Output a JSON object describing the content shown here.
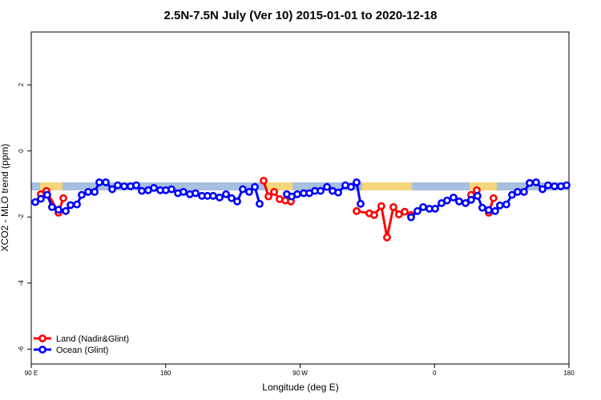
{
  "chart_data": {
    "type": "line",
    "title": "2.5N-7.5N July (Ver 10)   2015-01-01 to 2020-12-18",
    "x_label": "Longitude (deg E)",
    "y_label": "XCO2 - MLO trend (ppm)",
    "xlim": [
      90,
      450
    ],
    "ylim": [
      -6.45,
      3.6
    ],
    "xticks": [
      {
        "value": 90,
        "label": "90 E"
      },
      180,
      {
        "value": 270,
        "label": "90 W"
      },
      {
        "value": 360,
        "label": "0"
      },
      {
        "value": 450,
        "label": "180"
      }
    ],
    "yticks": [
      -6,
      -4,
      -2,
      0,
      2
    ],
    "legend": "bottom-left",
    "series": [
      {
        "name": "Land (Nadir&Glint)",
        "color": "#ff0000",
        "x": [
          96.4,
          100.2,
          108.2,
          111.5,
          null,
          245.6,
          248.8,
          252.6,
          256.3,
          260.1,
          263.8,
          null,
          307.8,
          316.4,
          319.6,
          324.4,
          328.2,
          332.5,
          336.2,
          340.0,
          344.3,
          null,
          384.5,
          388.3,
          null,
          396.3,
          399.5
        ],
        "values": [
          -1.31,
          -1.21,
          -1.87,
          -1.43,
          null,
          -0.9,
          -1.38,
          -1.24,
          -1.46,
          -1.5,
          -1.53,
          null,
          -1.82,
          -1.89,
          -1.94,
          -1.67,
          -2.62,
          -1.7,
          -1.92,
          -1.84,
          -1.94,
          null,
          -1.33,
          -1.19,
          null,
          -1.87,
          -1.43
        ]
      },
      {
        "name": "Ocean (Glint)",
        "color": "#0000ff",
        "x": [
          92.7,
          96.4,
          100.7,
          103.9,
          108.2,
          113.1,
          116.3,
          120.6,
          123.8,
          128.1,
          132.4,
          135.6,
          139.9,
          144.2,
          147.9,
          152.2,
          156.5,
          160.3,
          164.0,
          168.3,
          172.1,
          176.4,
          180.1,
          183.9,
          188.2,
          191.9,
          196.2,
          200.0,
          204.3,
          208.0,
          211.8,
          216.1,
          220.4,
          224.1,
          227.9,
          231.6,
          235.9,
          239.7,
          242.9,
          null,
          261.1,
          264.4,
          268.1,
          272.4,
          276.2,
          279.9,
          283.7,
          288.0,
          291.7,
          295.5,
          300.3,
          304.1,
          307.8,
          310.5,
          null,
          344.3,
          348.6,
          352.4,
          356.6,
          360.4,
          364.7,
          368.4,
          372.7,
          376.5,
          380.8,
          384.5,
          388.8,
          392.0,
          396.3,
          400.6,
          403.8,
          408.1,
          411.9,
          415.6,
          419.9,
          423.7,
          428.0,
          432.3,
          436.0,
          440.3,
          444.6,
          448.4
        ],
        "values": [
          -1.55,
          -1.45,
          -1.33,
          -1.7,
          -1.78,
          -1.82,
          -1.64,
          -1.62,
          -1.33,
          -1.24,
          -1.24,
          -0.95,
          -0.95,
          -1.16,
          -1.04,
          -1.07,
          -1.07,
          -1.04,
          -1.21,
          -1.19,
          -1.12,
          -1.19,
          -1.19,
          -1.16,
          -1.28,
          -1.24,
          -1.31,
          -1.28,
          -1.36,
          -1.36,
          -1.36,
          -1.41,
          -1.31,
          -1.43,
          -1.53,
          -1.16,
          -1.24,
          -1.09,
          -1.6,
          null,
          -1.31,
          -1.38,
          -1.31,
          -1.28,
          -1.28,
          -1.21,
          -1.21,
          -1.09,
          -1.21,
          -1.26,
          -1.04,
          -1.09,
          -0.95,
          -1.6,
          null,
          -2.01,
          -1.82,
          -1.7,
          -1.75,
          -1.75,
          -1.58,
          -1.5,
          -1.41,
          -1.53,
          -1.58,
          -1.48,
          -1.36,
          -1.72,
          -1.79,
          -1.82,
          -1.65,
          -1.62,
          -1.33,
          -1.24,
          -1.24,
          -0.97,
          -0.95,
          -1.16,
          -1.04,
          -1.07,
          -1.07,
          -1.04
        ]
      }
    ]
  }
}
